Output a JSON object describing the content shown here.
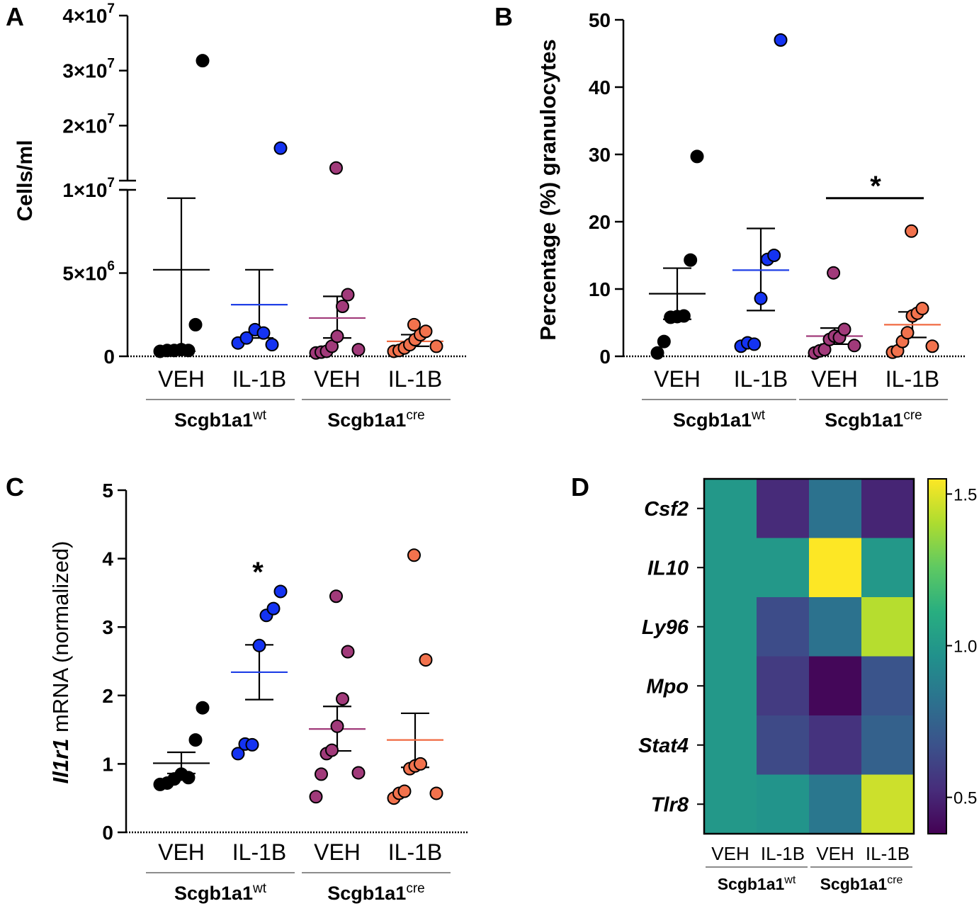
{
  "colors": {
    "veh_wt": "#000000",
    "il1b_wt": "#1433f2",
    "veh_cre": "#a13a7a",
    "il1b_cre": "#f2724d",
    "mean_wt_il1b": "#1f3fe6",
    "mean_cre_veh": "#a13a7a",
    "mean_cre_il1b": "#f06a42",
    "axis": "#000000"
  },
  "chart_data": [
    {
      "panel": "A",
      "type": "scatter",
      "ylabel": "Cells/ml",
      "broken_axis": true,
      "lower_range": [
        0,
        10000000
      ],
      "upper_range": [
        10000000,
        40000000
      ],
      "yticks": [
        {
          "value": 0,
          "label": "0",
          "sup": ""
        },
        {
          "value": 5000000,
          "label": "5×10",
          "sup": "6"
        },
        {
          "value": 10000000,
          "label": "1×10",
          "sup": "7"
        },
        {
          "value": 20000000,
          "label": "2×10",
          "sup": "7"
        },
        {
          "value": 30000000,
          "label": "3×10",
          "sup": "7"
        },
        {
          "value": 40000000,
          "label": "4×10",
          "sup": "7"
        }
      ],
      "categories": [
        "VEH",
        "IL-1B",
        "VEH",
        "IL-1B"
      ],
      "groups": [
        {
          "label": "Scgb1a1",
          "sup": "wt"
        },
        {
          "label": "Scgb1a1",
          "sup": "cre"
        }
      ],
      "series": [
        {
          "name": "Scgb1a1wt VEH",
          "color_key": "veh_wt",
          "points": [
            300000,
            350000,
            350000,
            400000,
            350000,
            1900000,
            31800000
          ],
          "mean": 5200000,
          "sem": [
            300000,
            9500000
          ],
          "mean_color_key": "axis"
        },
        {
          "name": "Scgb1a1wt IL-1B",
          "color_key": "il1b_wt",
          "points": [
            800000,
            1100000,
            1600000,
            1400000,
            700000,
            15900000
          ],
          "mean": 3100000,
          "sem": [
            1100000,
            5200000
          ],
          "mean_color_key": "mean_wt_il1b"
        },
        {
          "name": "Scgb1a1cre VEH",
          "color_key": "veh_cre",
          "points": [
            200000,
            250000,
            300000,
            600000,
            1200000,
            3000000,
            3700000,
            12300000,
            400000
          ],
          "mean": 2300000,
          "sem": [
            1100000,
            3600000
          ],
          "mean_color_key": "mean_cre_veh"
        },
        {
          "name": "Scgb1a1cre IL-1B",
          "color_key": "il1b_cre",
          "points": [
            300000,
            350000,
            500000,
            700000,
            1000000,
            1300000,
            1500000,
            1900000,
            600000
          ],
          "mean": 900000,
          "sem": [
            600000,
            1300000
          ],
          "mean_color_key": "mean_cre_il1b"
        }
      ]
    },
    {
      "panel": "B",
      "type": "scatter",
      "ylabel": "Percentage (%) granulocytes",
      "ylim": [
        0,
        50
      ],
      "yticks": [
        0,
        10,
        20,
        30,
        40,
        50
      ],
      "categories": [
        "VEH",
        "IL-1B",
        "VEH",
        "IL-1B"
      ],
      "groups": [
        {
          "label": "Scgb1a1",
          "sup": "wt"
        },
        {
          "label": "Scgb1a1",
          "sup": "cre"
        }
      ],
      "significance": {
        "label": "*",
        "from": 2,
        "to": 3,
        "y": 23.5
      },
      "series": [
        {
          "name": "Scgb1a1wt VEH",
          "color_key": "veh_wt",
          "points": [
            0.5,
            2.2,
            5.8,
            5.9,
            6.0,
            14.3,
            29.7
          ],
          "mean": 9.3,
          "sem": [
            5.5,
            13.1
          ],
          "mean_color_key": "axis"
        },
        {
          "name": "Scgb1a1wt IL-1B",
          "color_key": "il1b_wt",
          "points": [
            1.5,
            2.0,
            1.8,
            8.6,
            14.4,
            15.0,
            47.0
          ],
          "mean": 12.8,
          "sem": [
            6.8,
            19.0
          ],
          "mean_color_key": "mean_wt_il1b"
        },
        {
          "name": "Scgb1a1cre VEH",
          "color_key": "veh_cre",
          "points": [
            0.5,
            0.8,
            1.0,
            2.5,
            3.0,
            2.8,
            4.0,
            12.4,
            1.6
          ],
          "mean": 3.0,
          "sem": [
            1.8,
            4.2
          ],
          "mean_color_key": "mean_cre_veh"
        },
        {
          "name": "Scgb1a1cre IL-1B",
          "color_key": "il1b_cre",
          "points": [
            0.6,
            0.8,
            2.2,
            3.5,
            6.0,
            6.4,
            7.1,
            18.6,
            1.5
          ],
          "mean": 4.7,
          "sem": [
            2.8,
            6.6
          ],
          "mean_color_key": "mean_cre_il1b"
        }
      ]
    },
    {
      "panel": "C",
      "type": "scatter",
      "ylabel_italic": "Il1r1",
      "ylabel_rest": " mRNA (normalized)",
      "ylim": [
        0,
        5
      ],
      "yticks": [
        0,
        1,
        2,
        3,
        4,
        5
      ],
      "categories": [
        "VEH",
        "IL-1B",
        "VEH",
        "IL-1B"
      ],
      "groups": [
        {
          "label": "Scgb1a1",
          "sup": "wt"
        },
        {
          "label": "Scgb1a1",
          "sup": "cre"
        }
      ],
      "significance": {
        "label": "*",
        "over": 1,
        "y": 3.85
      },
      "series": [
        {
          "name": "Scgb1a1wt VEH",
          "color_key": "veh_wt",
          "points": [
            0.7,
            0.72,
            0.78,
            0.85,
            0.8,
            1.35,
            1.82
          ],
          "mean": 1.01,
          "sem": [
            0.86,
            1.17
          ],
          "mean_color_key": "axis"
        },
        {
          "name": "Scgb1a1wt IL-1B",
          "color_key": "il1b_wt",
          "points": [
            1.15,
            1.29,
            1.28,
            2.73,
            3.17,
            3.27,
            3.52
          ],
          "mean": 2.34,
          "sem": [
            1.94,
            2.74
          ],
          "mean_color_key": "mean_wt_il1b"
        },
        {
          "name": "Scgb1a1cre VEH",
          "color_key": "veh_cre",
          "points": [
            0.52,
            0.85,
            1.15,
            1.2,
            1.55,
            1.95,
            2.64,
            3.45,
            0.87
          ],
          "mean": 1.51,
          "sem": [
            1.19,
            1.84
          ],
          "mean_color_key": "mean_cre_veh"
        },
        {
          "name": "Scgb1a1cre IL-1B",
          "color_key": "il1b_cre",
          "points": [
            0.5,
            0.57,
            0.6,
            0.93,
            0.97,
            1.0,
            2.52,
            4.05,
            0.57
          ],
          "mean": 1.35,
          "sem": [
            0.95,
            1.74
          ],
          "mean_color_key": "mean_cre_il1b"
        }
      ]
    },
    {
      "panel": "D",
      "type": "heatmap",
      "rows": [
        "Csf2",
        "IL10",
        "Ly96",
        "Mpo",
        "Stat4",
        "Tlr8"
      ],
      "columns": [
        "VEH",
        "IL-1B",
        "VEH",
        "IL-1B"
      ],
      "groups": [
        {
          "label": "Scgb1a1",
          "sup": "wt"
        },
        {
          "label": "Scgb1a1",
          "sup": "cre"
        }
      ],
      "values": [
        [
          1.0,
          0.52,
          0.82,
          0.5
        ],
        [
          1.0,
          1.0,
          1.55,
          1.0
        ],
        [
          1.0,
          0.65,
          0.82,
          1.42
        ],
        [
          1.0,
          0.58,
          0.4,
          0.68
        ],
        [
          1.0,
          0.64,
          0.55,
          0.74
        ],
        [
          1.0,
          0.98,
          0.84,
          1.46
        ]
      ],
      "colorbar_range": [
        0.38,
        1.55
      ],
      "colorbar_ticks": [
        {
          "value": 1.5,
          "label": "1.5"
        },
        {
          "value": 1.0,
          "label": "1.0"
        },
        {
          "value": 0.5,
          "label": "0.5"
        }
      ]
    }
  ]
}
